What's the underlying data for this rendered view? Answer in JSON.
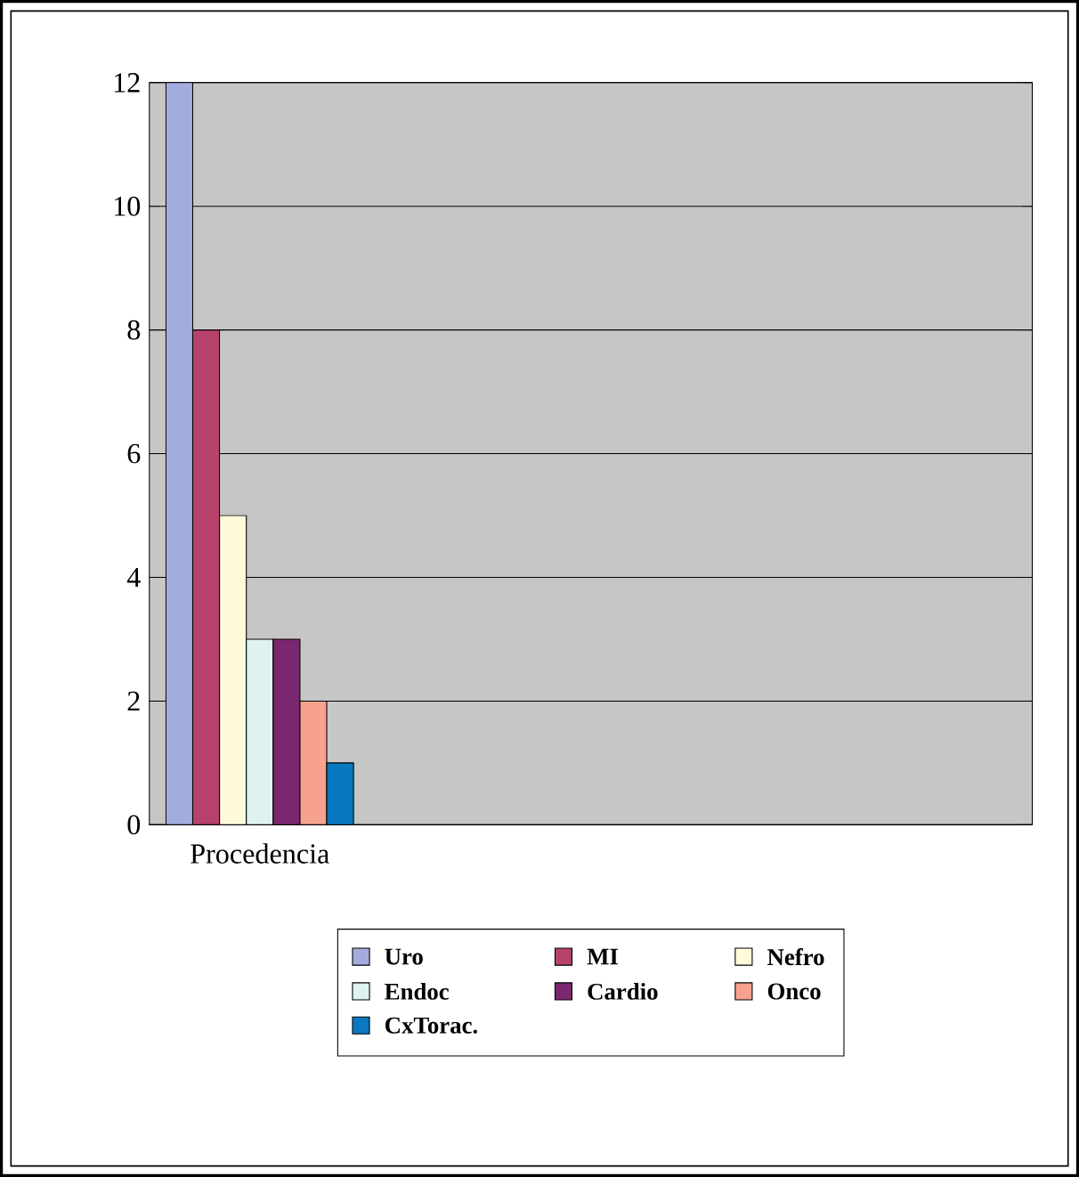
{
  "chart_data": {
    "type": "bar",
    "categories": [
      "Procedencia",
      null,
      null,
      null
    ],
    "series": [
      {
        "name": "Uro",
        "color": "#a3acdf",
        "values": [
          12,
          null,
          null,
          null
        ]
      },
      {
        "name": "MI",
        "color": "#b6426b",
        "values": [
          8,
          null,
          null,
          null
        ]
      },
      {
        "name": "Nefro",
        "color": "#fffbda",
        "values": [
          5,
          null,
          null,
          null
        ]
      },
      {
        "name": "Endoc",
        "color": "#def3f1",
        "values": [
          3,
          null,
          null,
          null
        ]
      },
      {
        "name": "Cardio",
        "color": "#7b2770",
        "values": [
          3,
          null,
          null,
          null
        ]
      },
      {
        "name": "Onco",
        "color": "#f7a28e",
        "values": [
          2,
          null,
          null,
          null
        ]
      },
      {
        "name": "CxTorac.",
        "color": "#0a78bf",
        "values": [
          1,
          null,
          null,
          null
        ]
      }
    ],
    "ylim": [
      0,
      12
    ],
    "yticks": [
      0,
      2,
      4,
      6,
      8,
      10,
      12
    ],
    "grid": "y",
    "legend": "bottom"
  }
}
